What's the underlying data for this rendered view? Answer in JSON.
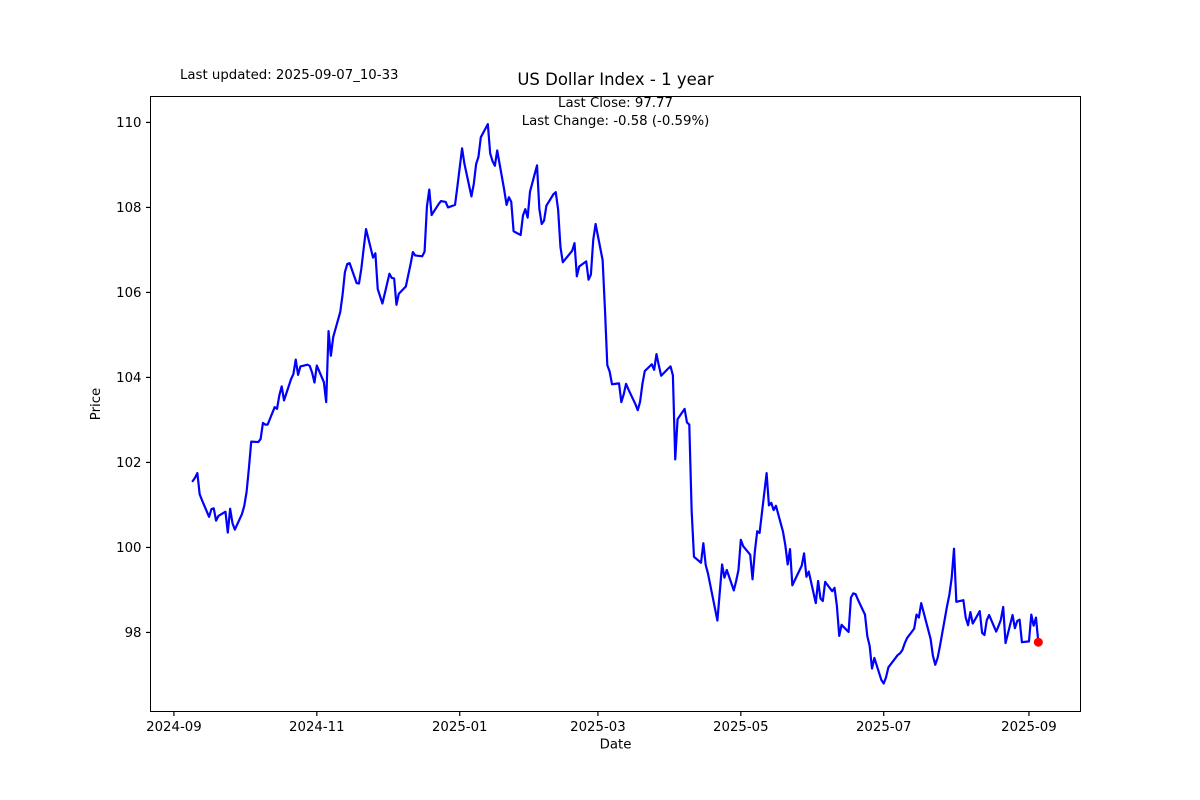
{
  "figure": {
    "last_updated": "Last updated: 2025-09-07_10-33",
    "title": "US Dollar Index - 1 year",
    "annotation_line1": "Last Close: 97.77",
    "annotation_line2": "Last Change: -0.58 (-0.59%)"
  },
  "chart_data": {
    "type": "line",
    "title": "US Dollar Index - 1 year",
    "xlabel": "Date",
    "ylabel": "Price",
    "legend": "none",
    "grid": false,
    "line_color": "#0000ff",
    "last_point_color": "#ff0000",
    "axes_color": "#000000",
    "background_color": "#ffffff",
    "last_close": 97.77,
    "last_change": -0.58,
    "last_change_pct": -0.59,
    "y_ticks": [
      98,
      100,
      102,
      104,
      106,
      108,
      110
    ],
    "x_tick_labels": [
      "2024-09",
      "2024-11",
      "2025-01",
      "2025-03",
      "2025-05",
      "2025-07",
      "2025-09"
    ],
    "ylim": [
      96.14,
      110.61
    ],
    "xlim_days_from_2024_09_01": [
      -10,
      387
    ],
    "dates": [
      "2024-09-09",
      "2024-09-10",
      "2024-09-11",
      "2024-09-12",
      "2024-09-13",
      "2024-09-16",
      "2024-09-17",
      "2024-09-18",
      "2024-09-19",
      "2024-09-20",
      "2024-09-23",
      "2024-09-24",
      "2024-09-25",
      "2024-09-26",
      "2024-09-27",
      "2024-09-30",
      "2024-10-01",
      "2024-10-02",
      "2024-10-03",
      "2024-10-04",
      "2024-10-07",
      "2024-10-08",
      "2024-10-09",
      "2024-10-10",
      "2024-10-11",
      "2024-10-14",
      "2024-10-15",
      "2024-10-16",
      "2024-10-17",
      "2024-10-18",
      "2024-10-21",
      "2024-10-22",
      "2024-10-23",
      "2024-10-24",
      "2024-10-25",
      "2024-10-28",
      "2024-10-29",
      "2024-10-30",
      "2024-10-31",
      "2024-11-01",
      "2024-11-04",
      "2024-11-05",
      "2024-11-06",
      "2024-11-07",
      "2024-11-08",
      "2024-11-11",
      "2024-11-12",
      "2024-11-13",
      "2024-11-14",
      "2024-11-15",
      "2024-11-18",
      "2024-11-19",
      "2024-11-20",
      "2024-11-21",
      "2024-11-22",
      "2024-11-25",
      "2024-11-26",
      "2024-11-27",
      "2024-11-29",
      "2024-12-02",
      "2024-12-03",
      "2024-12-04",
      "2024-12-05",
      "2024-12-06",
      "2024-12-09",
      "2024-12-10",
      "2024-12-11",
      "2024-12-12",
      "2024-12-13",
      "2024-12-16",
      "2024-12-17",
      "2024-12-18",
      "2024-12-19",
      "2024-12-20",
      "2024-12-23",
      "2024-12-24",
      "2024-12-26",
      "2024-12-27",
      "2024-12-30",
      "2024-12-31",
      "2025-01-02",
      "2025-01-03",
      "2025-01-06",
      "2025-01-07",
      "2025-01-08",
      "2025-01-09",
      "2025-01-10",
      "2025-01-13",
      "2025-01-14",
      "2025-01-15",
      "2025-01-16",
      "2025-01-17",
      "2025-01-20",
      "2025-01-21",
      "2025-01-22",
      "2025-01-23",
      "2025-01-24",
      "2025-01-27",
      "2025-01-28",
      "2025-01-29",
      "2025-01-30",
      "2025-01-31",
      "2025-02-03",
      "2025-02-04",
      "2025-02-05",
      "2025-02-06",
      "2025-02-07",
      "2025-02-10",
      "2025-02-11",
      "2025-02-12",
      "2025-02-13",
      "2025-02-14",
      "2025-02-18",
      "2025-02-19",
      "2025-02-20",
      "2025-02-21",
      "2025-02-24",
      "2025-02-25",
      "2025-02-26",
      "2025-02-27",
      "2025-02-28",
      "2025-03-03",
      "2025-03-04",
      "2025-03-05",
      "2025-03-06",
      "2025-03-07",
      "2025-03-10",
      "2025-03-11",
      "2025-03-12",
      "2025-03-13",
      "2025-03-14",
      "2025-03-17",
      "2025-03-18",
      "2025-03-19",
      "2025-03-20",
      "2025-03-21",
      "2025-03-24",
      "2025-03-25",
      "2025-03-26",
      "2025-03-27",
      "2025-03-28",
      "2025-03-31",
      "2025-04-01",
      "2025-04-02",
      "2025-04-03",
      "2025-04-04",
      "2025-04-07",
      "2025-04-08",
      "2025-04-09",
      "2025-04-10",
      "2025-04-11",
      "2025-04-14",
      "2025-04-15",
      "2025-04-16",
      "2025-04-17",
      "2025-04-21",
      "2025-04-22",
      "2025-04-23",
      "2025-04-24",
      "2025-04-25",
      "2025-04-28",
      "2025-04-29",
      "2025-04-30",
      "2025-05-01",
      "2025-05-02",
      "2025-05-05",
      "2025-05-06",
      "2025-05-07",
      "2025-05-08",
      "2025-05-09",
      "2025-05-12",
      "2025-05-13",
      "2025-05-14",
      "2025-05-15",
      "2025-05-16",
      "2025-05-19",
      "2025-05-20",
      "2025-05-21",
      "2025-05-22",
      "2025-05-23",
      "2025-05-27",
      "2025-05-28",
      "2025-05-29",
      "2025-05-30",
      "2025-06-02",
      "2025-06-03",
      "2025-06-04",
      "2025-06-05",
      "2025-06-06",
      "2025-06-09",
      "2025-06-10",
      "2025-06-11",
      "2025-06-12",
      "2025-06-13",
      "2025-06-16",
      "2025-06-17",
      "2025-06-18",
      "2025-06-19",
      "2025-06-20",
      "2025-06-23",
      "2025-06-24",
      "2025-06-25",
      "2025-06-26",
      "2025-06-27",
      "2025-06-30",
      "2025-07-01",
      "2025-07-02",
      "2025-07-03",
      "2025-07-07",
      "2025-07-08",
      "2025-07-09",
      "2025-07-10",
      "2025-07-11",
      "2025-07-14",
      "2025-07-15",
      "2025-07-16",
      "2025-07-17",
      "2025-07-18",
      "2025-07-21",
      "2025-07-22",
      "2025-07-23",
      "2025-07-24",
      "2025-07-25",
      "2025-07-28",
      "2025-07-29",
      "2025-07-30",
      "2025-07-31",
      "2025-08-01",
      "2025-08-04",
      "2025-08-05",
      "2025-08-06",
      "2025-08-07",
      "2025-08-08",
      "2025-08-11",
      "2025-08-12",
      "2025-08-13",
      "2025-08-14",
      "2025-08-15",
      "2025-08-18",
      "2025-08-19",
      "2025-08-20",
      "2025-08-21",
      "2025-08-22",
      "2025-08-25",
      "2025-08-26",
      "2025-08-27",
      "2025-08-28",
      "2025-08-29",
      "2025-09-01",
      "2025-09-02",
      "2025-09-03",
      "2025-09-04",
      "2025-09-05"
    ],
    "values": [
      101.56,
      101.64,
      101.75,
      101.25,
      101.11,
      100.72,
      100.9,
      100.92,
      100.63,
      100.74,
      100.84,
      100.35,
      100.91,
      100.57,
      100.42,
      100.78,
      100.97,
      101.3,
      101.86,
      102.49,
      102.48,
      102.55,
      102.93,
      102.89,
      102.89,
      103.3,
      103.26,
      103.58,
      103.79,
      103.46,
      103.96,
      104.08,
      104.42,
      104.06,
      104.26,
      104.3,
      104.27,
      104.11,
      103.88,
      104.28,
      103.89,
      103.42,
      105.09,
      104.51,
      104.95,
      105.54,
      105.95,
      106.48,
      106.67,
      106.69,
      106.22,
      106.21,
      106.56,
      107.03,
      107.49,
      106.82,
      106.92,
      106.08,
      105.74,
      106.44,
      106.34,
      106.33,
      105.71,
      105.97,
      106.14,
      106.4,
      106.66,
      106.95,
      106.87,
      106.85,
      106.96,
      108.02,
      108.42,
      107.82,
      108.08,
      108.15,
      108.13,
      108.0,
      108.06,
      108.49,
      109.39,
      109.03,
      108.26,
      108.55,
      109.02,
      109.19,
      109.65,
      109.96,
      109.27,
      109.09,
      108.98,
      109.34,
      108.41,
      108.06,
      108.24,
      108.13,
      107.44,
      107.35,
      107.81,
      107.96,
      107.76,
      108.37,
      108.99,
      107.96,
      107.61,
      107.69,
      108.04,
      108.31,
      108.36,
      107.95,
      107.07,
      106.71,
      106.98,
      107.16,
      106.38,
      106.61,
      106.73,
      106.3,
      106.42,
      107.24,
      107.61,
      106.76,
      105.6,
      104.29,
      104.14,
      103.84,
      103.86,
      103.42,
      103.6,
      103.85,
      103.72,
      103.37,
      103.23,
      103.43,
      103.85,
      104.15,
      104.31,
      104.18,
      104.55,
      104.28,
      104.04,
      104.21,
      104.26,
      104.05,
      102.07,
      103.02,
      103.26,
      102.94,
      102.89,
      100.87,
      99.78,
      99.64,
      100.1,
      99.59,
      99.38,
      98.28,
      98.94,
      99.6,
      99.29,
      99.47,
      98.99,
      99.21,
      99.47,
      100.18,
      100.03,
      99.83,
      99.25,
      99.91,
      100.38,
      100.34,
      101.75,
      100.99,
      101.05,
      100.88,
      100.98,
      100.37,
      100.05,
      99.6,
      99.96,
      99.11,
      99.57,
      99.86,
      99.31,
      99.43,
      98.69,
      99.21,
      98.8,
      98.74,
      99.19,
      98.97,
      99.05,
      98.63,
      97.92,
      98.18,
      98.01,
      98.82,
      98.92,
      98.9,
      98.77,
      98.42,
      97.91,
      97.68,
      97.15,
      97.4,
      96.88,
      96.8,
      96.95,
      97.18,
      97.47,
      97.51,
      97.59,
      97.75,
      97.87,
      98.09,
      98.42,
      98.35,
      98.69,
      98.48,
      97.85,
      97.45,
      97.24,
      97.4,
      97.68,
      98.61,
      98.88,
      99.28,
      99.97,
      98.72,
      98.76,
      98.35,
      98.17,
      98.48,
      98.21,
      98.5,
      97.99,
      97.94,
      98.29,
      98.41,
      98.02,
      98.15,
      98.3,
      98.6,
      97.75,
      98.41,
      98.1,
      98.27,
      98.3,
      97.77,
      97.79,
      98.42,
      98.16,
      98.35,
      97.77
    ]
  }
}
